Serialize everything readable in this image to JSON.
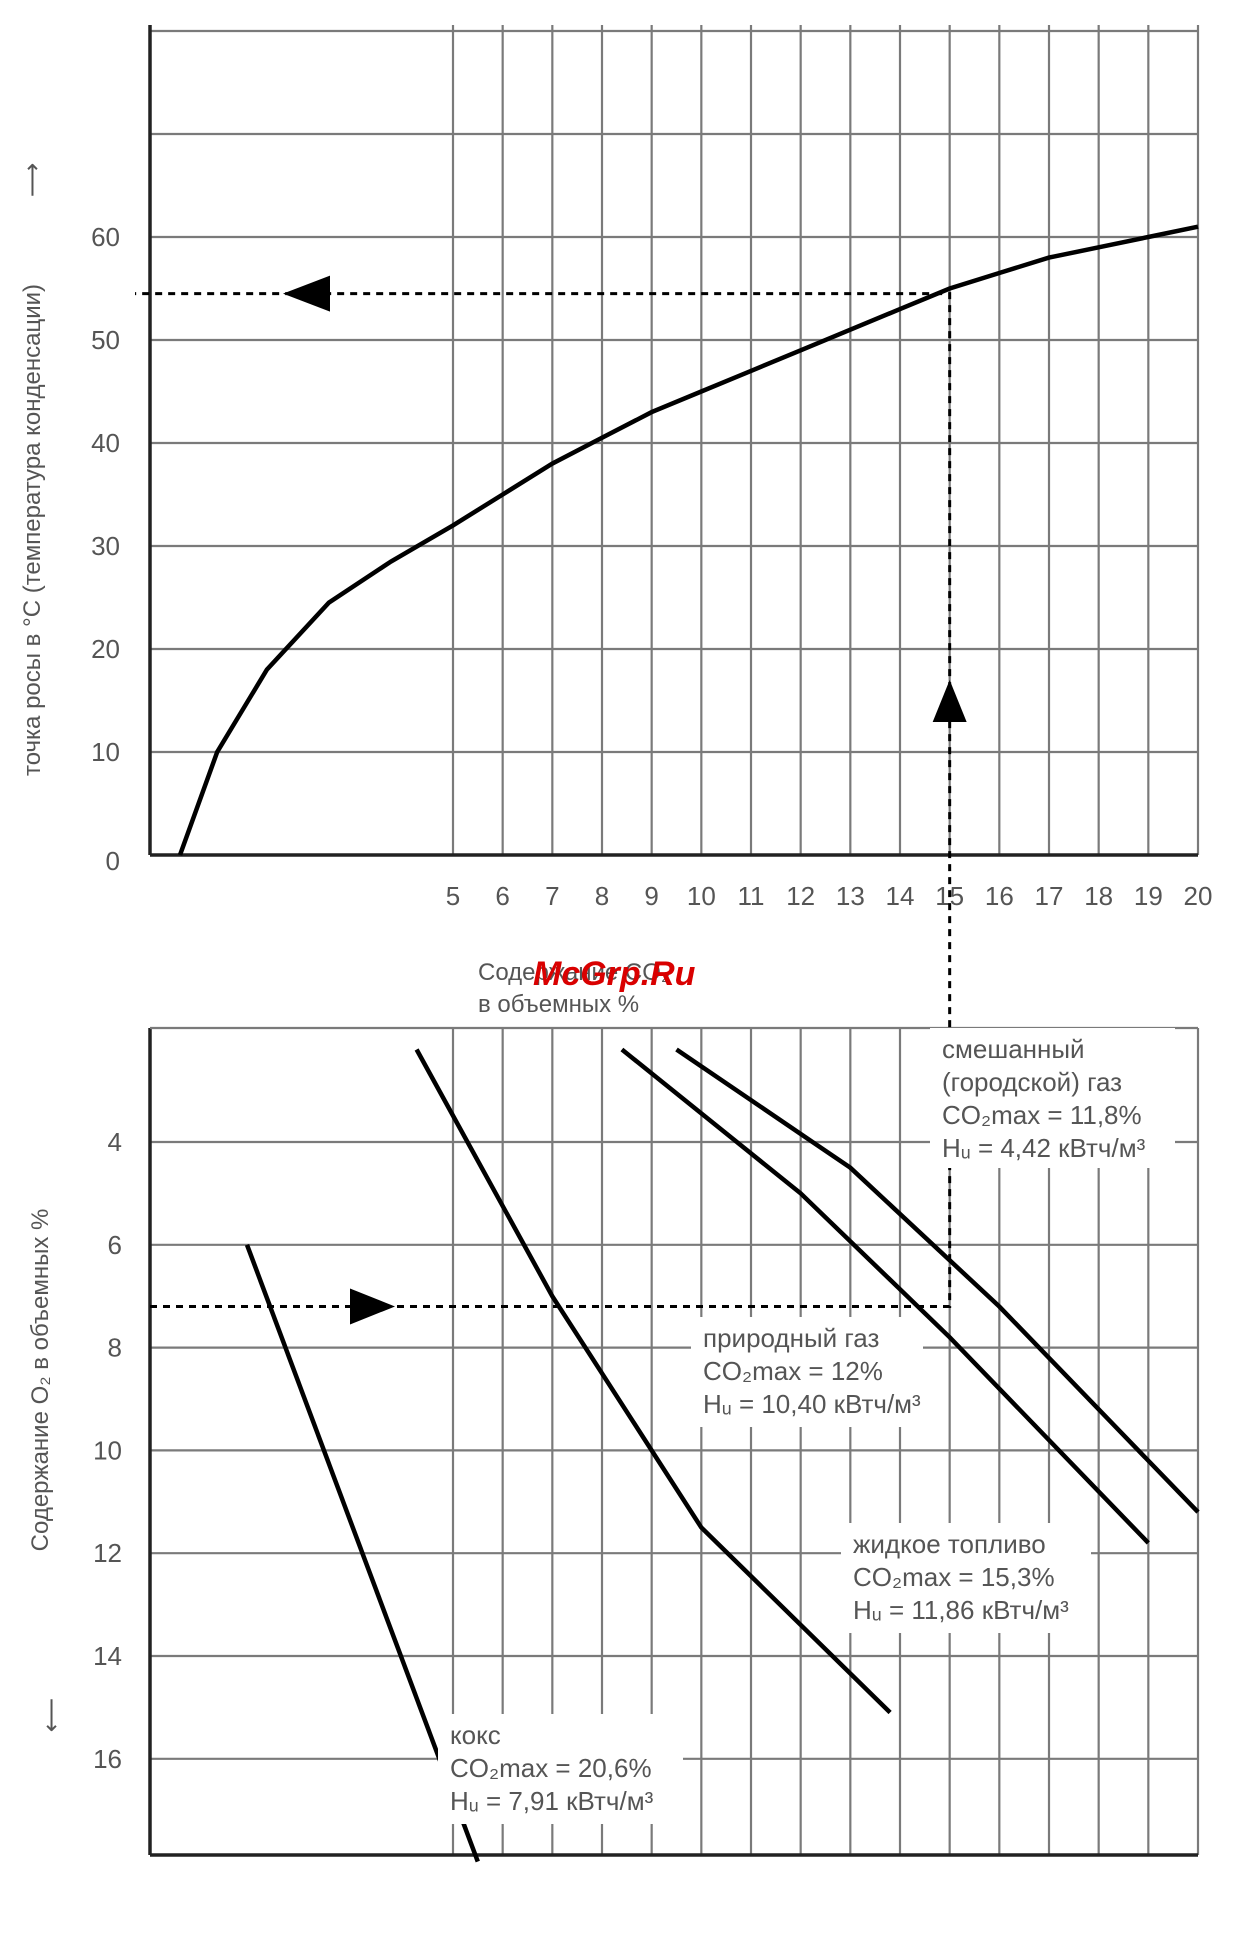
{
  "watermark": "McGrp.Ru",
  "chart_data": [
    {
      "type": "line",
      "ylabel": "точка росы в °С (температура конденсации)",
      "xlabel": "Содержание CO₂ в объемных %",
      "x_ticks": [
        5,
        6,
        7,
        8,
        9,
        10,
        11,
        12,
        13,
        14,
        15,
        16,
        17,
        18,
        19,
        20
      ],
      "y_ticks": [
        0,
        10,
        20,
        30,
        40,
        50,
        60
      ],
      "xlim": [
        0,
        20
      ],
      "ylim": [
        0,
        80
      ],
      "grid": true,
      "series": [
        {
          "x": [
            0.6,
            1.2,
            2,
            3,
            4,
            5,
            6,
            7,
            8,
            9,
            10,
            11,
            12,
            13,
            14,
            15,
            16,
            17,
            18,
            19,
            20
          ],
          "y": [
            0,
            10,
            18,
            24.5,
            28.5,
            32,
            35,
            38,
            40.5,
            43,
            45,
            47,
            49,
            51,
            53,
            55,
            56.5,
            58,
            59,
            60,
            61
          ]
        }
      ],
      "reading": {
        "x": 15,
        "y": 54.5
      }
    },
    {
      "type": "line",
      "ylabel": "Содержание O₂ в объемных %",
      "y_ticks": [
        4,
        6,
        8,
        10,
        12,
        14,
        16
      ],
      "xlim": [
        0,
        20
      ],
      "ylim": [
        2,
        18
      ],
      "y_inverted": true,
      "grid": true,
      "series": [
        {
          "name": "кокс",
          "x": [
            1.6,
            5.5
          ],
          "y": [
            6,
            18
          ]
        },
        {
          "name": "природный газ",
          "x": [
            4.4,
            7,
            10,
            13.8
          ],
          "y": [
            2.2,
            7,
            11.5,
            15.1
          ]
        },
        {
          "name": "жидкое топливо",
          "x": [
            8.4,
            12,
            15,
            19
          ],
          "y": [
            2.2,
            5,
            7.8,
            11.8
          ]
        },
        {
          "name": "смешанный (городской) газ",
          "x": [
            9.5,
            13,
            16,
            20
          ],
          "y": [
            2.2,
            4.5,
            7.2,
            11.2
          ]
        }
      ],
      "reading": {
        "x": 15,
        "y": 7.2
      }
    }
  ],
  "axis": {
    "top_ylabel": "точка росы в °С (температура конденсации)",
    "xlabel_line1": "Содержание CO₂",
    "xlabel_line2": "в объемных %",
    "bottom_ylabel": "Содержание O₂ в объемных %"
  },
  "annotations": [
    {
      "id": "mixed",
      "lines": [
        "смешанный",
        "(городской) газ",
        "CO₂max = 11,8%",
        "Hᵤ = 4,42 кВтч/м³"
      ]
    },
    {
      "id": "natural",
      "lines": [
        "природный газ",
        "CO₂max = 12%",
        "Hᵤ = 10,40 кВтч/м³"
      ]
    },
    {
      "id": "oil",
      "lines": [
        "жидкое топливо",
        "CO₂max = 15,3%",
        "Hᵤ = 11,86 кВтч/м³"
      ]
    },
    {
      "id": "coke",
      "lines": [
        "кокс",
        "CO₂max = 20,6%",
        "Hᵤ = 7,91 кВтч/м³"
      ]
    }
  ]
}
